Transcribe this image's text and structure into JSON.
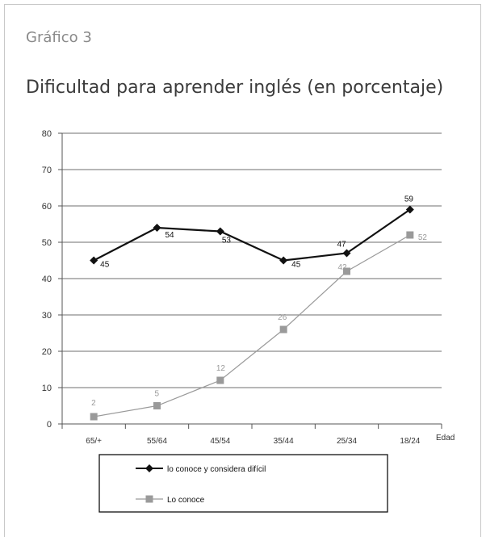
{
  "figure_label": "Gráfico 3",
  "chart_data": {
    "type": "line",
    "title": "Dificultad para aprender inglés (en porcentaje)",
    "xlabel": "Edad",
    "ylabel": "",
    "categories": [
      "65/+",
      "55/64",
      "45/54",
      "35/44",
      "25/34",
      "18/24"
    ],
    "ylim": [
      0,
      80
    ],
    "yticks": [
      "0",
      "10",
      "20",
      "30",
      "40",
      "50",
      "60",
      "70",
      "80"
    ],
    "grid": true,
    "legend_position": "bottom",
    "series": [
      {
        "name": "lo conoce y considera difícil",
        "values": [
          45,
          54,
          53,
          45,
          47,
          59
        ],
        "labels": [
          "45",
          "54",
          "53",
          "45",
          "47",
          "59"
        ],
        "color": "#111111",
        "marker": "diamond"
      },
      {
        "name": "Lo conoce",
        "values": [
          2,
          5,
          12,
          26,
          42,
          52
        ],
        "labels": [
          "2",
          "5",
          "12",
          "26",
          "42",
          "52"
        ],
        "color": "#9a9a9a",
        "marker": "square"
      }
    ]
  }
}
